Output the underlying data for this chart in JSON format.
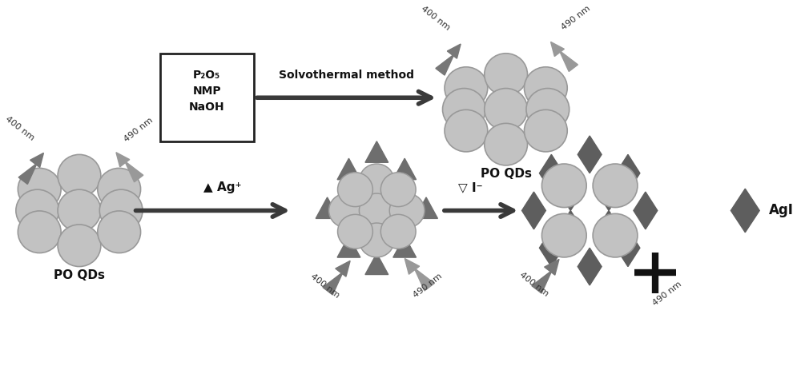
{
  "bg_color": "#ffffff",
  "circle_color": "#c2c2c2",
  "circle_edge": "#999999",
  "triangle_color": "#6e6e6e",
  "diamond_color": "#5e5e5e",
  "arrow_color": "#3a3a3a",
  "lightning_dark": "#777777",
  "lightning_light": "#999999",
  "text_color": "#111111",
  "box_line1": "P₂O₅",
  "box_line2": "NMP",
  "box_line3": "NaOH",
  "arrow1_label": "Solvothermal method",
  "arrow2_label": "▲ Ag⁺",
  "arrow3_label": "▽ I⁻",
  "label_po_qds": "PO QDs",
  "label_agi": "AgI",
  "nm400": "400 nm",
  "nm490": "490 nm"
}
